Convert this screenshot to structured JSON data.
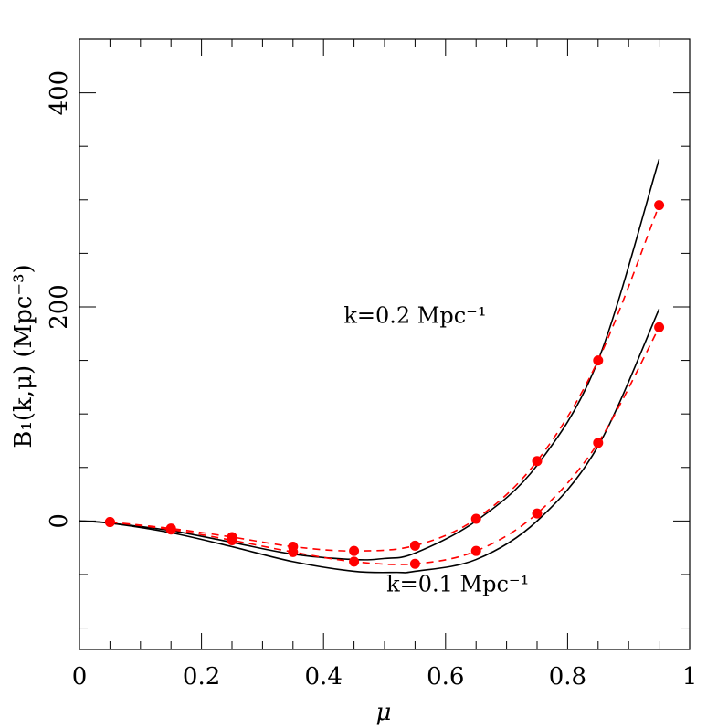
{
  "chart_data": {
    "type": "line",
    "xlabel": "μ",
    "ylabel": "B₁(k,μ)  (Mpc⁻³)",
    "xlim": [
      0,
      1
    ],
    "ylim": [
      -120,
      450
    ],
    "xticks": [
      0,
      0.2,
      0.4,
      0.6,
      0.8,
      1
    ],
    "xtick_labels": [
      "0",
      "0.2",
      "0.4",
      "0.6",
      "0.8",
      "1"
    ],
    "yticks": [
      0,
      200,
      400
    ],
    "ytick_labels": [
      "0",
      "200",
      "400"
    ],
    "grid": false,
    "colors": {
      "model": "#000000",
      "data": "#ff0000"
    },
    "annotations": [
      {
        "text": "k=0.2 Mpc⁻¹",
        "x": 0.55,
        "y": 185
      },
      {
        "text": "k=0.1 Mpc⁻¹",
        "x": 0.62,
        "y": -66
      }
    ],
    "series": [
      {
        "style": "solid",
        "color": "#000000",
        "x": [
          0.0,
          0.05,
          0.15,
          0.25,
          0.35,
          0.45,
          0.5,
          0.55,
          0.65,
          0.75,
          0.85,
          0.95
        ],
        "y": [
          0,
          -2,
          -9,
          -20,
          -31,
          -36,
          -35,
          -30,
          0,
          52,
          150,
          338
        ]
      },
      {
        "style": "solid",
        "color": "#000000",
        "x": [
          0.0,
          0.05,
          0.15,
          0.25,
          0.35,
          0.45,
          0.52,
          0.55,
          0.65,
          0.75,
          0.85,
          0.95
        ],
        "y": [
          0,
          -2,
          -11,
          -24,
          -38,
          -47,
          -48,
          -47,
          -36,
          0,
          70,
          198
        ]
      },
      {
        "style": "dashed",
        "color": "#ff0000",
        "marker": "circle",
        "x": [
          0.05,
          0.15,
          0.25,
          0.35,
          0.45,
          0.55,
          0.65,
          0.75,
          0.85,
          0.95
        ],
        "y": [
          -1,
          -7,
          -15,
          -24,
          -28,
          -23,
          2,
          56,
          150,
          295
        ]
      },
      {
        "style": "dashed",
        "color": "#ff0000",
        "marker": "circle",
        "x": [
          0.05,
          0.15,
          0.25,
          0.35,
          0.45,
          0.55,
          0.65,
          0.75,
          0.85,
          0.95
        ],
        "y": [
          -1,
          -8,
          -18,
          -29,
          -38,
          -40,
          -28,
          7,
          73,
          181
        ]
      }
    ]
  }
}
